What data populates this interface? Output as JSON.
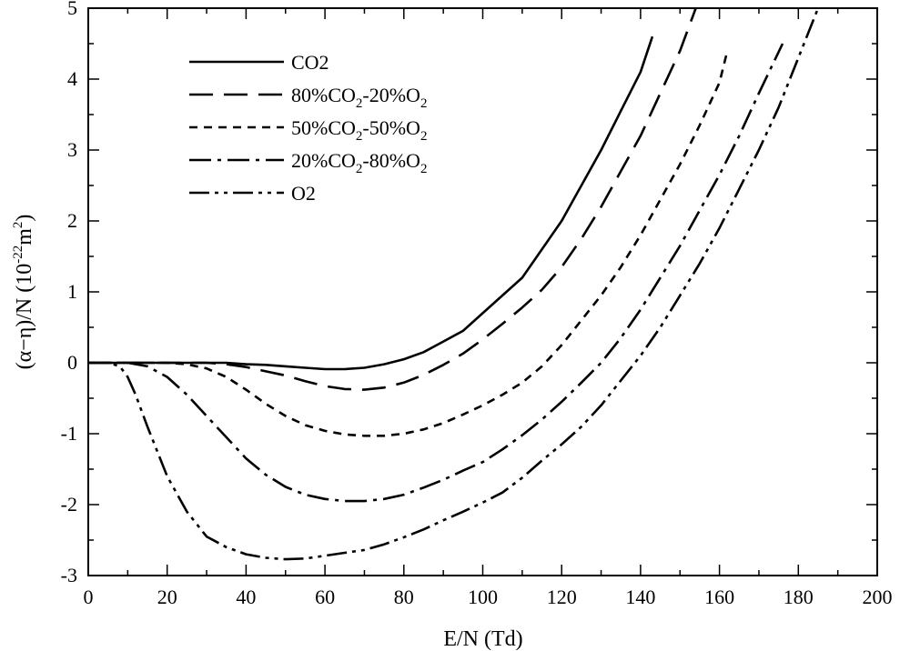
{
  "chart_data": {
    "type": "line",
    "xlabel": "E/N (Td)",
    "ylabel": "(α−η)/N (10-22m2)",
    "ylabel_parts": {
      "main": "(α−η)/N (10",
      "exp1": "-22",
      "mid": "m",
      "exp2": "2",
      "end": ")"
    },
    "xlim": [
      0,
      200
    ],
    "ylim": [
      -3,
      5
    ],
    "xticks": [
      "0",
      "20",
      "40",
      "60",
      "80",
      "100",
      "120",
      "140",
      "160",
      "180",
      "200"
    ],
    "yticks": [
      "-3",
      "-2",
      "-1",
      "0",
      "1",
      "2",
      "3",
      "4",
      "5"
    ],
    "legend_position": "top-left",
    "grid": false,
    "series": [
      {
        "name": "CO2",
        "legend_parts": [
          [
            "CO2",
            false
          ]
        ],
        "dash": "solid",
        "x": [
          0,
          10,
          20,
          30,
          35,
          40,
          45,
          50,
          55,
          60,
          65,
          70,
          75,
          80,
          85,
          90,
          95,
          100,
          105,
          110,
          115,
          120,
          125,
          130,
          135,
          140,
          143
        ],
        "y": [
          0,
          0,
          0,
          0,
          0,
          -0.02,
          -0.03,
          -0.05,
          -0.07,
          -0.09,
          -0.09,
          -0.07,
          -0.02,
          0.05,
          0.15,
          0.3,
          0.45,
          0.7,
          0.95,
          1.2,
          1.6,
          2.0,
          2.5,
          3.0,
          3.55,
          4.1,
          4.6
        ]
      },
      {
        "name": "80%CO2-20%O2",
        "legend_parts": [
          [
            "80%CO",
            false
          ],
          [
            "2",
            true
          ],
          [
            "-20%O",
            false
          ],
          [
            "2",
            true
          ]
        ],
        "dash": "long",
        "x": [
          0,
          10,
          20,
          30,
          35,
          40,
          45,
          50,
          55,
          60,
          65,
          70,
          75,
          80,
          85,
          90,
          95,
          100,
          105,
          110,
          115,
          120,
          125,
          130,
          135,
          140,
          145,
          150,
          154
        ],
        "y": [
          0,
          0,
          0,
          0,
          -0.02,
          -0.06,
          -0.12,
          -0.18,
          -0.26,
          -0.33,
          -0.37,
          -0.38,
          -0.35,
          -0.28,
          -0.17,
          -0.03,
          0.13,
          0.33,
          0.55,
          0.78,
          1.03,
          1.35,
          1.75,
          2.2,
          2.7,
          3.2,
          3.8,
          4.4,
          5.0
        ]
      },
      {
        "name": "50%CO2-50%O2",
        "legend_parts": [
          [
            "50%CO",
            false
          ],
          [
            "2",
            true
          ],
          [
            "-50%O",
            false
          ],
          [
            "2",
            true
          ]
        ],
        "dash": "short",
        "x": [
          0,
          10,
          20,
          25,
          30,
          35,
          40,
          45,
          50,
          55,
          60,
          65,
          70,
          75,
          80,
          85,
          90,
          95,
          100,
          105,
          110,
          115,
          120,
          125,
          130,
          135,
          140,
          145,
          150,
          155,
          160,
          162
        ],
        "y": [
          0,
          0,
          0,
          -0.02,
          -0.08,
          -0.2,
          -0.38,
          -0.58,
          -0.75,
          -0.88,
          -0.96,
          -1.01,
          -1.03,
          -1.03,
          -1.0,
          -0.94,
          -0.85,
          -0.73,
          -0.6,
          -0.45,
          -0.28,
          -0.05,
          0.25,
          0.6,
          0.95,
          1.35,
          1.8,
          2.3,
          2.8,
          3.35,
          3.95,
          4.4
        ]
      },
      {
        "name": "20%CO2-80%O2",
        "legend_parts": [
          [
            "20%CO",
            false
          ],
          [
            "2",
            true
          ],
          [
            "-80%O",
            false
          ],
          [
            "2",
            true
          ]
        ],
        "dash": "dashdot",
        "x": [
          0,
          10,
          15,
          20,
          25,
          30,
          35,
          40,
          45,
          50,
          55,
          60,
          65,
          70,
          75,
          80,
          85,
          90,
          95,
          100,
          105,
          110,
          115,
          120,
          125,
          130,
          135,
          140,
          145,
          150,
          155,
          160,
          165,
          170,
          176
        ],
        "y": [
          0,
          0,
          -0.05,
          -0.2,
          -0.45,
          -0.75,
          -1.05,
          -1.35,
          -1.58,
          -1.75,
          -1.86,
          -1.92,
          -1.95,
          -1.95,
          -1.92,
          -1.86,
          -1.76,
          -1.65,
          -1.52,
          -1.4,
          -1.22,
          -1.02,
          -0.8,
          -0.55,
          -0.28,
          0.0,
          0.35,
          0.75,
          1.2,
          1.65,
          2.15,
          2.65,
          3.2,
          3.8,
          4.5
        ]
      },
      {
        "name": "O2",
        "legend_parts": [
          [
            "O2",
            false
          ]
        ],
        "dash": "dashdotdot",
        "x": [
          0,
          5,
          8,
          10,
          12,
          15,
          20,
          25,
          30,
          35,
          40,
          45,
          50,
          55,
          60,
          65,
          70,
          75,
          80,
          85,
          90,
          95,
          100,
          105,
          110,
          115,
          120,
          125,
          130,
          135,
          140,
          145,
          150,
          155,
          160,
          165,
          170,
          175,
          180,
          185
        ],
        "y": [
          0,
          0,
          -0.05,
          -0.2,
          -0.45,
          -0.9,
          -1.6,
          -2.1,
          -2.45,
          -2.6,
          -2.7,
          -2.75,
          -2.77,
          -2.76,
          -2.72,
          -2.68,
          -2.64,
          -2.56,
          -2.46,
          -2.35,
          -2.22,
          -2.1,
          -1.97,
          -1.83,
          -1.62,
          -1.38,
          -1.15,
          -0.9,
          -0.6,
          -0.25,
          0.1,
          0.5,
          0.95,
          1.4,
          1.9,
          2.45,
          3.0,
          3.6,
          4.3,
          5.0
        ]
      }
    ]
  }
}
